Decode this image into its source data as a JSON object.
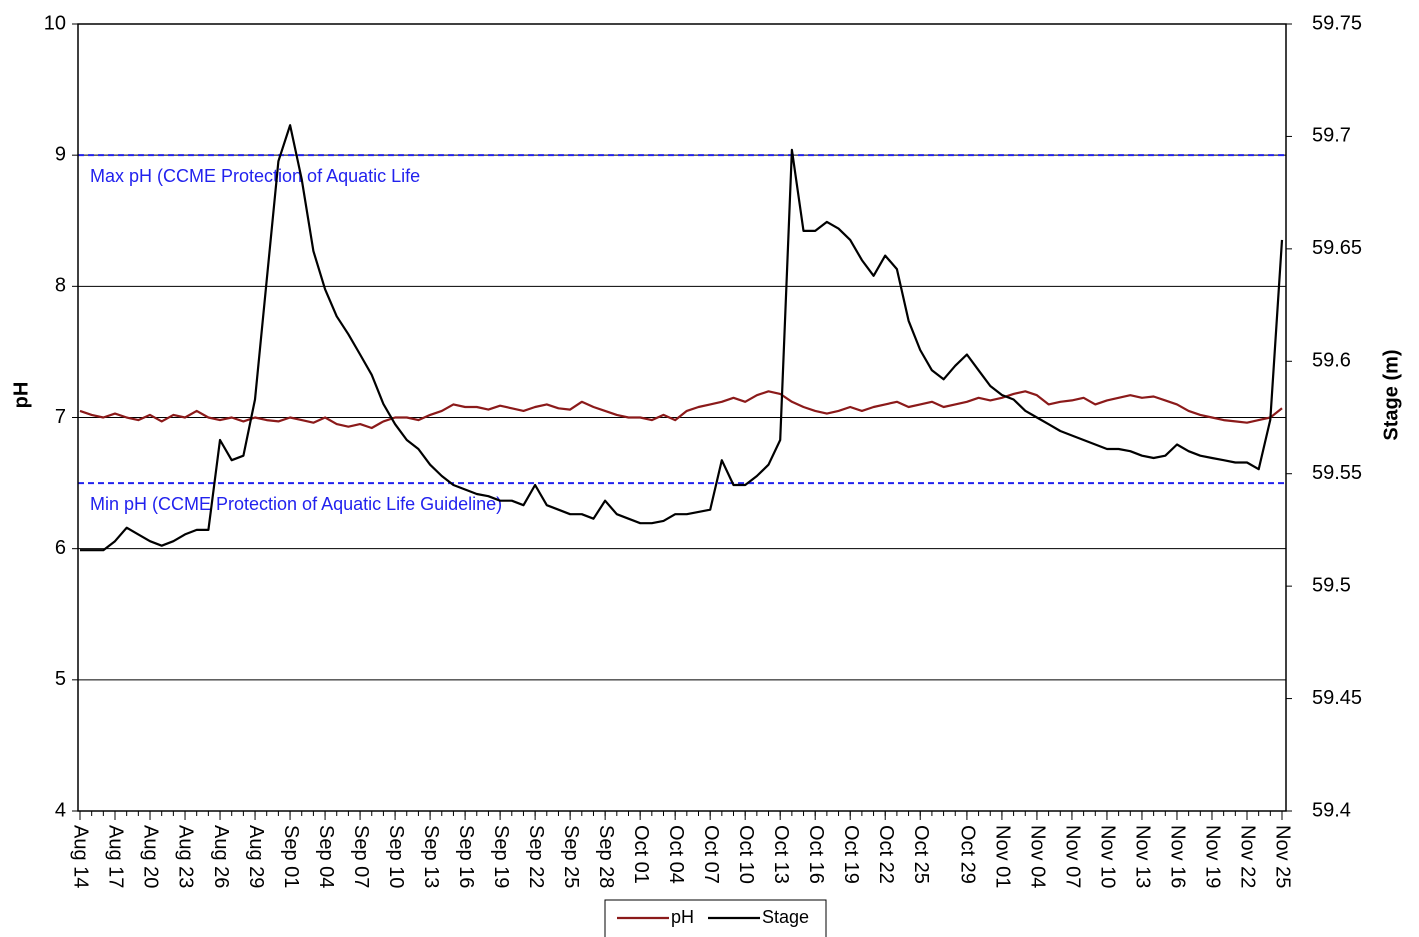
{
  "chart_data": {
    "type": "line",
    "y_label": "pH",
    "y2_label": "Stage (m)",
    "x": [
      "Aug 14",
      "Aug 15",
      "Aug 16",
      "Aug 17",
      "Aug 18",
      "Aug 19",
      "Aug 20",
      "Aug 21",
      "Aug 22",
      "Aug 23",
      "Aug 24",
      "Aug 25",
      "Aug 26",
      "Aug 27",
      "Aug 28",
      "Aug 29",
      "Aug 30",
      "Aug 31",
      "Sep 01",
      "Sep 02",
      "Sep 03",
      "Sep 04",
      "Sep 05",
      "Sep 06",
      "Sep 07",
      "Sep 08",
      "Sep 09",
      "Sep 10",
      "Sep 11",
      "Sep 12",
      "Sep 13",
      "Sep 14",
      "Sep 15",
      "Sep 16",
      "Sep 17",
      "Sep 18",
      "Sep 19",
      "Sep 20",
      "Sep 21",
      "Sep 22",
      "Sep 23",
      "Sep 24",
      "Sep 25",
      "Sep 26",
      "Sep 27",
      "Sep 28",
      "Sep 29",
      "Sep 30",
      "Oct 01",
      "Oct 02",
      "Oct 03",
      "Oct 04",
      "Oct 05",
      "Oct 06",
      "Oct 07",
      "Oct 08",
      "Oct 09",
      "Oct 10",
      "Oct 11",
      "Oct 12",
      "Oct 13",
      "Oct 14",
      "Oct 15",
      "Oct 16",
      "Oct 17",
      "Oct 18",
      "Oct 19",
      "Oct 20",
      "Oct 21",
      "Oct 22",
      "Oct 23",
      "Oct 24",
      "Oct 25",
      "Oct 26",
      "Oct 27",
      "Oct 28",
      "Oct 29",
      "Oct 30",
      "Oct 31",
      "Nov 01",
      "Nov 02",
      "Nov 03",
      "Nov 04",
      "Nov 05",
      "Nov 06",
      "Nov 07",
      "Nov 08",
      "Nov 09",
      "Nov 10",
      "Nov 11",
      "Nov 12",
      "Nov 13",
      "Nov 14",
      "Nov 15",
      "Nov 16",
      "Nov 17",
      "Nov 18",
      "Nov 19",
      "Nov 20",
      "Nov 21",
      "Nov 22",
      "Nov 23",
      "Nov 24",
      "Nov 25"
    ],
    "xticks": [
      "Aug 14",
      "Aug 17",
      "Aug 20",
      "Aug 23",
      "Aug 26",
      "Aug 29",
      "Sep 01",
      "Sep 04",
      "Sep 07",
      "Sep 10",
      "Sep 13",
      "Sep 16",
      "Sep 19",
      "Sep 22",
      "Sep 25",
      "Sep 28",
      "Oct 01",
      "Oct 04",
      "Oct 07",
      "Oct 10",
      "Oct 13",
      "Oct 16",
      "Oct 19",
      "Oct 22",
      "Oct 25",
      "Oct 29",
      "Nov 01",
      "Nov 04",
      "Nov 07",
      "Nov 10",
      "Nov 13",
      "Nov 16",
      "Nov 19",
      "Nov 22",
      "Nov 25"
    ],
    "series": [
      {
        "name": "pH",
        "color": "#8b1a1a",
        "axis": "y",
        "values": [
          7.05,
          7.02,
          7.0,
          7.03,
          7.0,
          6.98,
          7.02,
          6.97,
          7.02,
          7.0,
          7.05,
          7.0,
          6.98,
          7.0,
          6.97,
          7.0,
          6.98,
          6.97,
          7.0,
          6.98,
          6.96,
          7.0,
          6.95,
          6.93,
          6.95,
          6.92,
          6.97,
          7.0,
          7.0,
          6.98,
          7.02,
          7.05,
          7.1,
          7.08,
          7.08,
          7.06,
          7.09,
          7.07,
          7.05,
          7.08,
          7.1,
          7.07,
          7.06,
          7.12,
          7.08,
          7.05,
          7.02,
          7.0,
          7.0,
          6.98,
          7.02,
          6.98,
          7.05,
          7.08,
          7.1,
          7.12,
          7.15,
          7.12,
          7.17,
          7.2,
          7.18,
          7.12,
          7.08,
          7.05,
          7.03,
          7.05,
          7.08,
          7.05,
          7.08,
          7.1,
          7.12,
          7.08,
          7.1,
          7.12,
          7.08,
          7.1,
          7.12,
          7.15,
          7.13,
          7.15,
          7.18,
          7.2,
          7.17,
          7.1,
          7.12,
          7.13,
          7.15,
          7.1,
          7.13,
          7.15,
          7.17,
          7.15,
          7.16,
          7.13,
          7.1,
          7.05,
          7.02,
          7.0,
          6.98,
          6.97,
          6.96,
          6.98,
          7.0,
          7.07
        ]
      },
      {
        "name": "Stage",
        "color": "#000000",
        "axis": "y2",
        "values": [
          59.516,
          59.516,
          59.516,
          59.52,
          59.526,
          59.523,
          59.52,
          59.518,
          59.52,
          59.523,
          59.525,
          59.525,
          59.565,
          59.556,
          59.558,
          59.583,
          59.636,
          59.689,
          59.705,
          59.681,
          59.649,
          59.632,
          59.62,
          59.612,
          59.603,
          59.594,
          59.581,
          59.572,
          59.565,
          59.561,
          59.554,
          59.549,
          59.545,
          59.543,
          59.541,
          59.54,
          59.538,
          59.538,
          59.536,
          59.545,
          59.536,
          59.534,
          59.532,
          59.532,
          59.53,
          59.538,
          59.532,
          59.53,
          59.528,
          59.528,
          59.529,
          59.532,
          59.532,
          59.533,
          59.534,
          59.556,
          59.545,
          59.545,
          59.549,
          59.554,
          59.565,
          59.694,
          59.658,
          59.658,
          59.662,
          59.659,
          59.654,
          59.645,
          59.638,
          59.647,
          59.641,
          59.618,
          59.605,
          59.596,
          59.592,
          59.598,
          59.603,
          59.596,
          59.589,
          59.585,
          59.583,
          59.578,
          59.575,
          59.572,
          59.569,
          59.567,
          59.565,
          59.563,
          59.561,
          59.561,
          59.56,
          59.558,
          59.557,
          59.558,
          59.563,
          59.56,
          59.558,
          59.557,
          59.556,
          59.555,
          59.555,
          59.552,
          59.574,
          59.654
        ]
      }
    ],
    "ylim": [
      4,
      10
    ],
    "yticks": [
      4,
      5,
      6,
      7,
      8,
      9,
      10
    ],
    "y2lim": [
      59.4,
      59.75
    ],
    "y2ticks": [
      59.4,
      59.45,
      59.5,
      59.55,
      59.6,
      59.65,
      59.7,
      59.75
    ],
    "grid": true,
    "grid_color": "#000000",
    "reference_lines": [
      {
        "value": 9,
        "label": "Max pH (CCME Protection of Aquatic Life",
        "color": "#2222ee"
      },
      {
        "value": 6.5,
        "label": "Min pH (CCME Protection of Aquatic Life Guideline)",
        "color": "#2222ee"
      }
    ],
    "legend": "bottom"
  }
}
